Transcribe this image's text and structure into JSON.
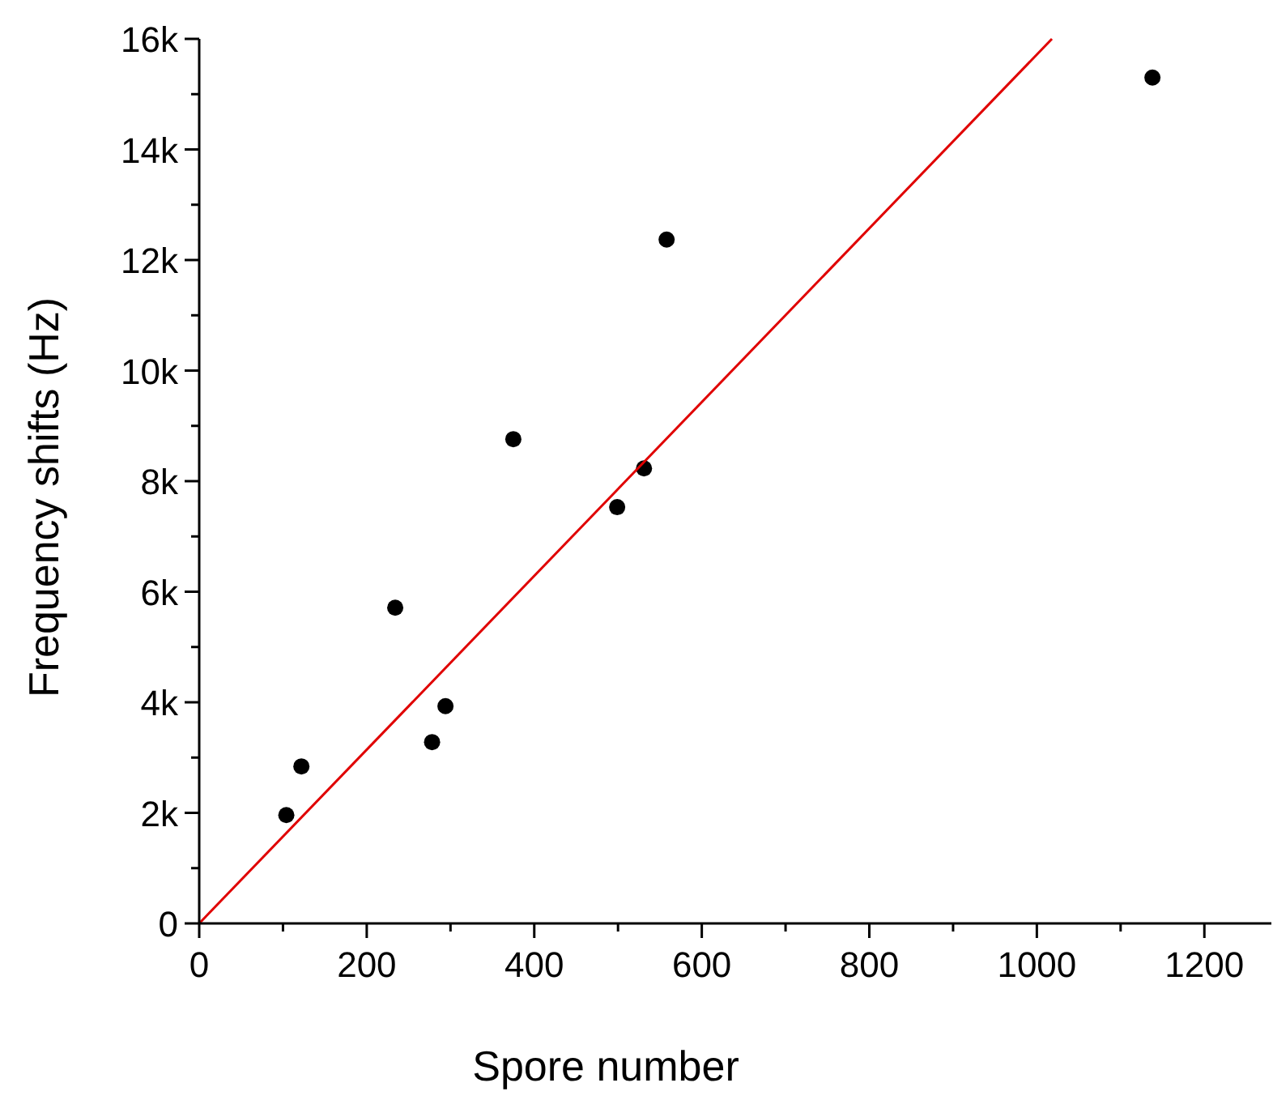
{
  "chart_data": {
    "type": "scatter",
    "xlabel": "Spore number",
    "ylabel": "Frequency shifts (Hz)",
    "xlim": [
      0,
      1280
    ],
    "ylim": [
      0,
      16000
    ],
    "xticks": [
      0,
      {
        "value": 100,
        "label": null
      },
      200,
      {
        "value": 300,
        "label": null
      },
      400,
      {
        "value": 500,
        "label": null
      },
      600,
      {
        "value": 700,
        "label": null
      },
      800,
      {
        "value": 900,
        "label": null
      },
      1000,
      {
        "value": 1100,
        "label": null
      },
      1200
    ],
    "yticks": [
      0,
      {
        "value": 1000,
        "label": null
      },
      {
        "value": 2000,
        "label": "2k"
      },
      {
        "value": 3000,
        "label": null
      },
      {
        "value": 4000,
        "label": "4k"
      },
      {
        "value": 5000,
        "label": null
      },
      {
        "value": 6000,
        "label": "6k"
      },
      {
        "value": 7000,
        "label": null
      },
      {
        "value": 8000,
        "label": "8k"
      },
      {
        "value": 9000,
        "label": null
      },
      {
        "value": 10000,
        "label": "10k"
      },
      {
        "value": 11000,
        "label": null
      },
      {
        "value": 12000,
        "label": "12k"
      },
      {
        "value": 13000,
        "label": null
      },
      {
        "value": 14000,
        "label": "14k"
      },
      {
        "value": 15000,
        "label": null
      },
      {
        "value": 16000,
        "label": "16k"
      }
    ],
    "grid": false,
    "series": [
      {
        "marker": "circle",
        "color": "#000000",
        "x": [
          104,
          122,
          234,
          278,
          294,
          375,
          499,
          531,
          558,
          1138
        ],
        "values": [
          1960,
          2840,
          5710,
          3280,
          3930,
          8760,
          7530,
          8230,
          12370,
          15300
        ]
      },
      {
        "type": "line",
        "color": "#e00000",
        "x": [
          0,
          1018
        ],
        "values": [
          0,
          16000
        ]
      }
    ]
  }
}
